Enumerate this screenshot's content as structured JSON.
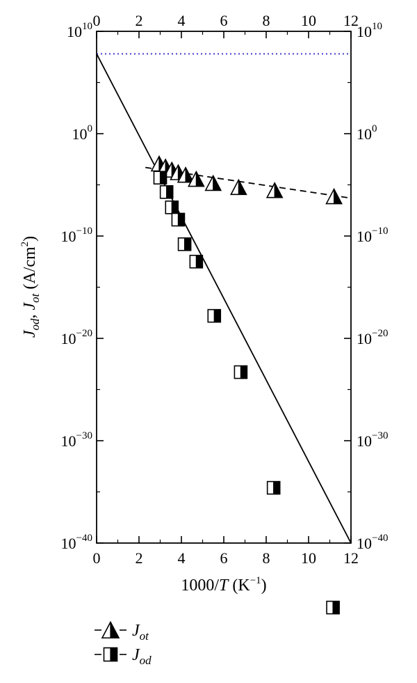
{
  "chart_data": {
    "type": "scatter",
    "x_axis": {
      "label_prefix": "1000/",
      "label_var": "T",
      "label_unit_open": " (K",
      "label_unit_sup": "−1",
      "label_unit_close": ")",
      "range": [
        0,
        12
      ],
      "ticks": [
        0,
        2,
        4,
        6,
        8,
        10,
        12
      ],
      "tick_labels": [
        "0",
        "2",
        "4",
        "6",
        "8",
        "10",
        "12"
      ]
    },
    "y_axis": {
      "scale": "log",
      "label": {
        "j1": "J",
        "j1_sub": "od",
        "sep": ", ",
        "j2": "J",
        "j2_sub": "ot",
        "unit_open": " (A/cm",
        "unit_sup": "2",
        "unit_close": ")"
      },
      "range_exponent": [
        -40,
        10
      ],
      "ticks_exponent": [
        10,
        0,
        -10,
        -20,
        -30,
        -40
      ],
      "tick_base": "10",
      "tick_exponent_labels": [
        "10",
        "0",
        "−10",
        "−20",
        "−30",
        "−40"
      ]
    },
    "reference_line": {
      "log10_value": 7.8,
      "style": "dotted",
      "color": "#3b3bd1"
    },
    "series": [
      {
        "name": "J_ot",
        "legend_main": "J",
        "legend_sub": "ot",
        "marker": "half-filled-triangle",
        "fit_line": "dashed",
        "x": [
          2.95,
          3.25,
          3.55,
          3.85,
          4.2,
          4.7,
          5.5,
          6.7,
          8.4,
          11.2
        ],
        "log10_y": [
          -3.0,
          -3.3,
          -3.6,
          -3.85,
          -4.1,
          -4.5,
          -4.9,
          -5.3,
          -5.6,
          -6.2
        ]
      },
      {
        "name": "J_od",
        "legend_main": "J",
        "legend_sub": "od",
        "marker": "half-filled-square",
        "fit_line": "solid",
        "x": [
          3.0,
          3.3,
          3.55,
          3.85,
          4.15,
          4.7,
          5.55,
          6.8,
          8.35,
          11.15
        ],
        "log10_y": [
          -4.3,
          -5.7,
          -7.2,
          -8.4,
          -10.8,
          -12.5,
          -17.8,
          -23.3,
          -34.6,
          -46.3
        ]
      }
    ],
    "fit_lines": [
      {
        "series": "J_od",
        "style": "solid",
        "x0": 0,
        "log10_y0": 7.8,
        "x1": 12,
        "log10_y1": -40
      },
      {
        "series": "J_ot",
        "style": "dashed",
        "x0": 2.3,
        "log10_y0": -3.3,
        "x1": 12,
        "log10_y1": -6.3
      }
    ],
    "legend": {
      "placement": "bottom-left"
    }
  }
}
